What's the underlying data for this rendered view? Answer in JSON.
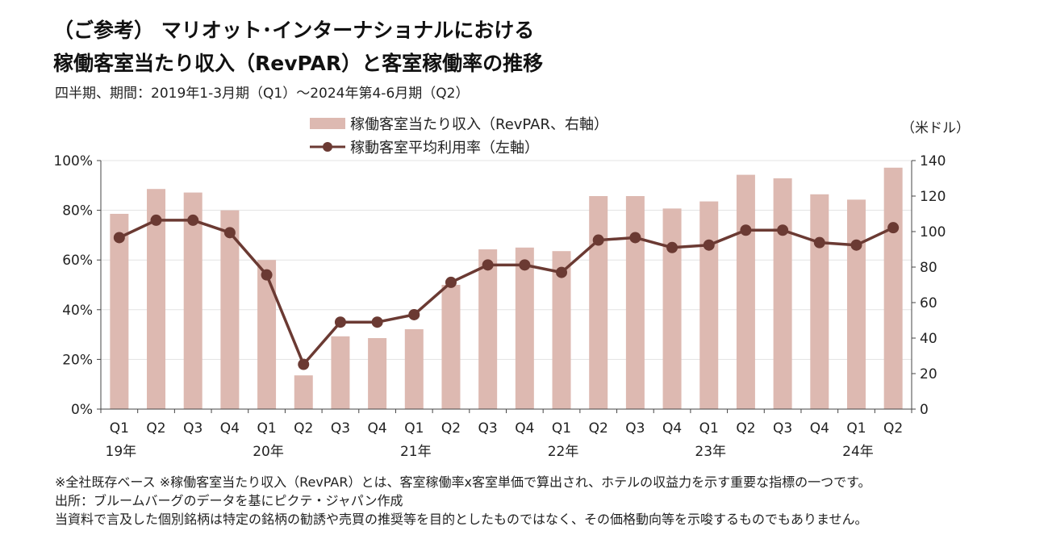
{
  "title": {
    "line1": "（ご参考） マリオット･インターナショナルにおける",
    "line2": "稼働客室当たり収入（RevPAR）と客室稼働率の推移"
  },
  "subtitle": "四半期、期間：2019年1-3月期（Q1）～2024年第4-6月期（Q2）",
  "unit_label": "（米ドル）",
  "footnotes": [
    "※全社既存ベース ※稼働客室当たり収入（RevPAR）とは、客室稼働率x客室単価で算出され、ホテルの収益力を示す重要な指標の一つです。",
    "出所：ブルームバーグのデータを基にピクテ・ジャパン作成",
    "当資料で言及した個別銘柄は特定の銘柄の勧誘や売買の推奨等を目的としたものではなく、その価格動向等を示唆するものでもありません。"
  ],
  "colors": {
    "bar": "#ddb9b1",
    "line": "#6b3a33",
    "axis": "#444444",
    "grid": "#e3e3e3"
  },
  "chart_data": {
    "type": "bar",
    "categories": [
      "Q1",
      "Q2",
      "Q3",
      "Q4",
      "Q1",
      "Q2",
      "Q3",
      "Q4",
      "Q1",
      "Q2",
      "Q3",
      "Q4",
      "Q1",
      "Q2",
      "Q3",
      "Q4",
      "Q1",
      "Q2",
      "Q3",
      "Q4",
      "Q1",
      "Q2"
    ],
    "year_labels": [
      {
        "index": 0,
        "label": "19年"
      },
      {
        "index": 4,
        "label": "20年"
      },
      {
        "index": 8,
        "label": "21年"
      },
      {
        "index": 12,
        "label": "22年"
      },
      {
        "index": 16,
        "label": "23年"
      },
      {
        "index": 20,
        "label": "24年"
      }
    ],
    "series": [
      {
        "name": "稼働客室当たり収入（RevPAR、右軸）",
        "type": "bar",
        "axis": "right",
        "values": [
          110,
          124,
          122,
          112,
          84,
          19,
          41,
          40,
          45,
          70,
          90,
          91,
          89,
          120,
          120,
          113,
          117,
          132,
          130,
          121,
          118,
          136
        ]
      },
      {
        "name": "稼動客室平均利用率（左軸）",
        "type": "line",
        "axis": "left",
        "values": [
          69,
          76,
          76,
          71,
          54,
          18,
          35,
          35,
          38,
          51,
          58,
          58,
          55,
          68,
          69,
          65,
          66,
          72,
          72,
          67,
          66,
          73
        ]
      }
    ],
    "left_axis": {
      "ylim": [
        0,
        100
      ],
      "ticks": [
        0,
        20,
        40,
        60,
        80,
        100
      ],
      "tick_labels": [
        "0%",
        "20%",
        "40%",
        "60%",
        "80%",
        "100%"
      ]
    },
    "right_axis": {
      "ylim": [
        0,
        140
      ],
      "ticks": [
        0,
        20,
        40,
        60,
        80,
        100,
        120,
        140
      ],
      "tick_labels": [
        "0",
        "20",
        "40",
        "60",
        "80",
        "100",
        "120",
        "140"
      ]
    },
    "grid": true,
    "legend_position": "top-center"
  }
}
